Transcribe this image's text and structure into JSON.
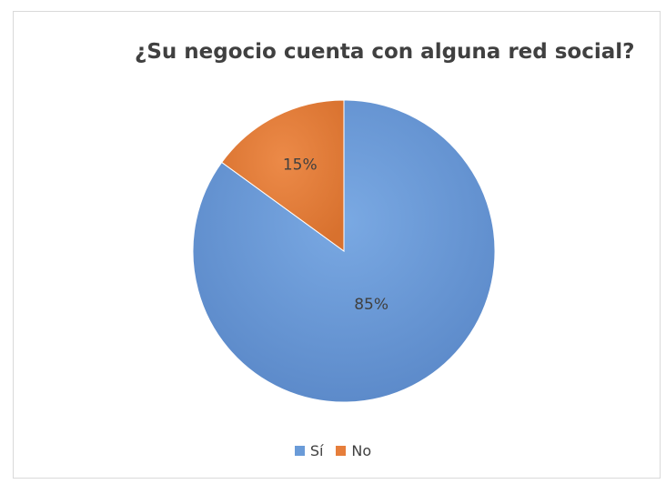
{
  "chart_data": {
    "type": "pie",
    "title": "¿Su negocio cuenta con alguna red social?",
    "categories": [
      "Sí",
      "No"
    ],
    "values": [
      85,
      15
    ],
    "data_labels": [
      "85%",
      "15%"
    ],
    "colors": [
      "#6a9bd8",
      "#e67e3b"
    ],
    "start_angle_deg": 0,
    "direction": "clockwise",
    "legend_position": "bottom"
  }
}
